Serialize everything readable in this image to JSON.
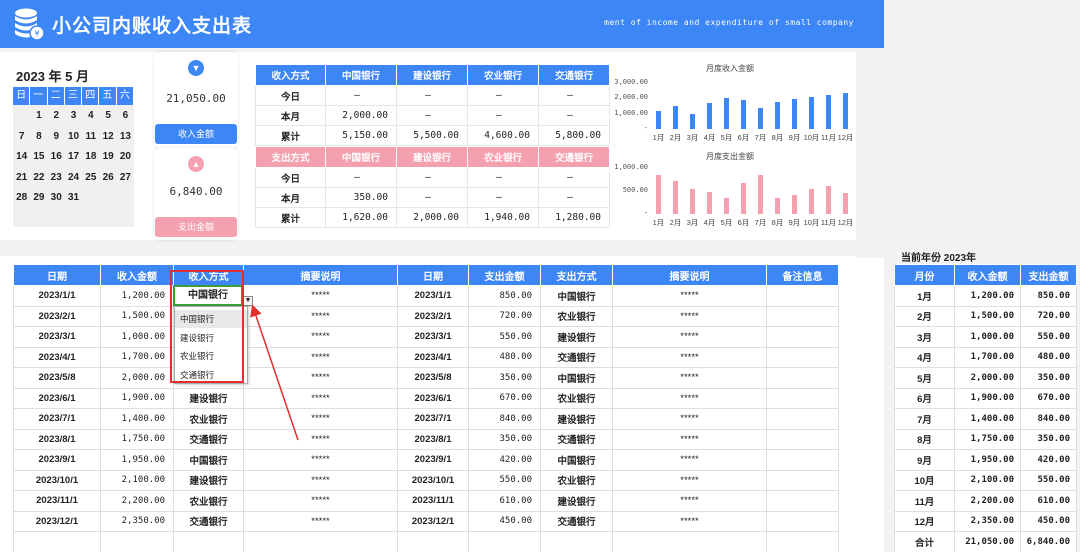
{
  "header": {
    "title": "小公司内账收入支出表",
    "subtitle": "ment of income and expenditure of small company"
  },
  "colors": {
    "primary": "#3d86f5",
    "pink": "#f4a0ae",
    "green": "#3c9b3c",
    "red": "#e03030"
  },
  "icons": {
    "logo": "coin-stack-icon",
    "income": "chevron-down-icon",
    "expense": "chevron-up-icon"
  },
  "calendar": {
    "title": "2023 年  5 月",
    "weekdays": [
      "日",
      "一",
      "二",
      "三",
      "四",
      "五",
      "六"
    ],
    "weeks": [
      [
        "",
        "1",
        "2",
        "3",
        "4",
        "5",
        "6"
      ],
      [
        "7",
        "8",
        "9",
        "10",
        "11",
        "12",
        "13"
      ],
      [
        "14",
        "15",
        "16",
        "17",
        "18",
        "19",
        "20"
      ],
      [
        "21",
        "22",
        "23",
        "24",
        "25",
        "26",
        "27"
      ],
      [
        "28",
        "29",
        "30",
        "31",
        "",
        "",
        ""
      ]
    ]
  },
  "income_card": {
    "value": "21,050.00",
    "button": "收入金额"
  },
  "expense_card": {
    "value": "6,840.00",
    "button": "支出金额"
  },
  "income_summary": {
    "headers": [
      "收入方式",
      "中国银行",
      "建设银行",
      "农业银行",
      "交通银行"
    ],
    "rows": [
      {
        "label": "今日",
        "values": [
          "–",
          "–",
          "–",
          "–"
        ]
      },
      {
        "label": "本月",
        "values": [
          "2,000.00",
          "–",
          "–",
          "–"
        ]
      },
      {
        "label": "累计",
        "values": [
          "5,150.00",
          "5,500.00",
          "4,600.00",
          "5,800.00"
        ]
      }
    ]
  },
  "expense_summary": {
    "headers": [
      "支出方式",
      "中国银行",
      "建设银行",
      "农业银行",
      "交通银行"
    ],
    "rows": [
      {
        "label": "今日",
        "values": [
          "–",
          "–",
          "–",
          "–"
        ]
      },
      {
        "label": "本月",
        "values": [
          "350.00",
          "–",
          "–",
          "–"
        ]
      },
      {
        "label": "累计",
        "values": [
          "1,620.00",
          "2,000.00",
          "1,940.00",
          "1,280.00"
        ]
      }
    ]
  },
  "chart_data": [
    {
      "type": "bar",
      "title": "月度收入金额",
      "categories": [
        "1月",
        "2月",
        "3月",
        "4月",
        "5月",
        "6月",
        "7月",
        "8月",
        "9月",
        "10月",
        "11月",
        "12月"
      ],
      "values": [
        1200,
        1500,
        1000,
        1700,
        2000,
        1900,
        1400,
        1750,
        1950,
        2100,
        2200,
        2350
      ],
      "yticks": [
        "3,000.00",
        "2,000.00",
        "1,000.00",
        "-"
      ],
      "ylim": [
        0,
        3000
      ],
      "color": "#3d86f5"
    },
    {
      "type": "bar",
      "title": "月度支出金额",
      "categories": [
        "1月",
        "2月",
        "3月",
        "4月",
        "5月",
        "6月",
        "7月",
        "8月",
        "9月",
        "10月",
        "11月",
        "12月"
      ],
      "values": [
        850,
        720,
        550,
        480,
        350,
        670,
        840,
        350,
        420,
        550,
        610,
        450
      ],
      "yticks": [
        "1,000.00",
        "500.00",
        "-"
      ],
      "ylim": [
        0,
        1000
      ],
      "color": "#f4a0ae"
    }
  ],
  "main_table": {
    "headers": [
      "日期",
      "收入金额",
      "收入方式",
      "摘要说明",
      "日期",
      "支出金额",
      "支出方式",
      "摘要说明",
      "备注信息"
    ],
    "rows": [
      [
        "2023/1/1",
        "1,200.00",
        "中国银行",
        "*****",
        "2023/1/1",
        "850.00",
        "中国银行",
        "*****",
        ""
      ],
      [
        "2023/2/1",
        "1,500.00",
        "",
        "*****",
        "2023/2/1",
        "720.00",
        "农业银行",
        "*****",
        ""
      ],
      [
        "2023/3/1",
        "1,000.00",
        "",
        "*****",
        "2023/3/1",
        "550.00",
        "建设银行",
        "*****",
        ""
      ],
      [
        "2023/4/1",
        "1,700.00",
        "",
        "*****",
        "2023/4/1",
        "480.00",
        "交通银行",
        "*****",
        ""
      ],
      [
        "2023/5/8",
        "2,000.00",
        "",
        "*****",
        "2023/5/8",
        "350.00",
        "中国银行",
        "*****",
        ""
      ],
      [
        "2023/6/1",
        "1,900.00",
        "建设银行",
        "*****",
        "2023/6/1",
        "670.00",
        "农业银行",
        "*****",
        ""
      ],
      [
        "2023/7/1",
        "1,400.00",
        "农业银行",
        "*****",
        "2023/7/1",
        "840.00",
        "建设银行",
        "*****",
        ""
      ],
      [
        "2023/8/1",
        "1,750.00",
        "交通银行",
        "*****",
        "2023/8/1",
        "350.00",
        "交通银行",
        "*****",
        ""
      ],
      [
        "2023/9/1",
        "1,950.00",
        "中国银行",
        "*****",
        "2023/9/1",
        "420.00",
        "中国银行",
        "*****",
        ""
      ],
      [
        "2023/10/1",
        "2,100.00",
        "建设银行",
        "*****",
        "2023/10/1",
        "550.00",
        "农业银行",
        "*****",
        ""
      ],
      [
        "2023/11/1",
        "2,200.00",
        "农业银行",
        "*****",
        "2023/11/1",
        "610.00",
        "建设银行",
        "*****",
        ""
      ],
      [
        "2023/12/1",
        "2,350.00",
        "交通银行",
        "*****",
        "2023/12/1",
        "450.00",
        "交通银行",
        "*****",
        ""
      ]
    ]
  },
  "dropdown": {
    "selected": "中国银行",
    "options": [
      "中国银行",
      "建设银行",
      "农业银行",
      "交通银行"
    ]
  },
  "monthly": {
    "year_label": "当前年份  2023年",
    "headers": [
      "月份",
      "收入金额",
      "支出金额"
    ],
    "rows": [
      [
        "1月",
        "1,200.00",
        "850.00"
      ],
      [
        "2月",
        "1,500.00",
        "720.00"
      ],
      [
        "3月",
        "1,000.00",
        "550.00"
      ],
      [
        "4月",
        "1,700.00",
        "480.00"
      ],
      [
        "5月",
        "2,000.00",
        "350.00"
      ],
      [
        "6月",
        "1,900.00",
        "670.00"
      ],
      [
        "7月",
        "1,400.00",
        "840.00"
      ],
      [
        "8月",
        "1,750.00",
        "350.00"
      ],
      [
        "9月",
        "1,950.00",
        "420.00"
      ],
      [
        "10月",
        "2,100.00",
        "550.00"
      ],
      [
        "11月",
        "2,200.00",
        "610.00"
      ],
      [
        "12月",
        "2,350.00",
        "450.00"
      ]
    ],
    "total": [
      "合计",
      "21,050.00",
      "6,840.00"
    ]
  }
}
